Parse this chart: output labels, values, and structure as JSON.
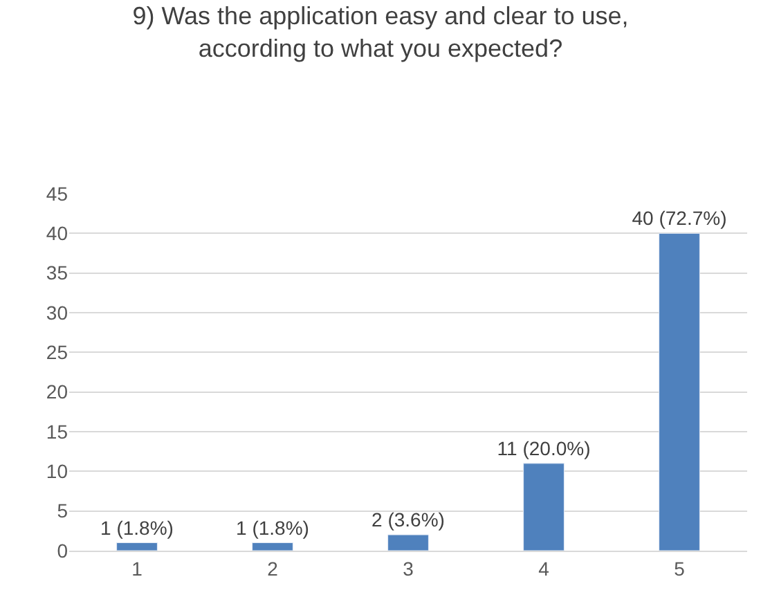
{
  "chart_data": {
    "type": "bar",
    "title": "9) Was the application easy and clear to use,\naccording to what you expected?",
    "categories": [
      "1",
      "2",
      "3",
      "4",
      "5"
    ],
    "values": [
      1,
      1,
      2,
      11,
      40
    ],
    "value_labels": [
      "1 (1.8%)",
      "1 (1.8%)",
      "2 (3.6%)",
      "11 (20.0%)",
      "40 (72.7%)"
    ],
    "color": "#4f81bd",
    "ylim": [
      0,
      45
    ],
    "yticks": [
      0,
      5,
      10,
      15,
      20,
      25,
      30,
      35,
      40,
      45
    ],
    "grid": "y"
  }
}
